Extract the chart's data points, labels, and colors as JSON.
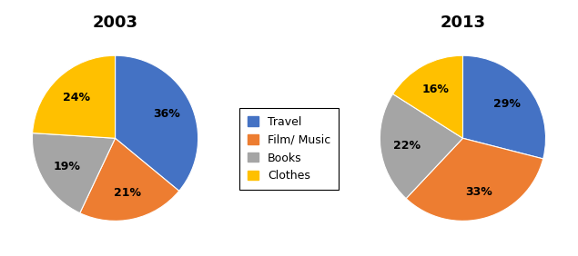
{
  "title_2003": "2003",
  "title_2013": "2013",
  "labels": [
    "Travel",
    "Film/ Music",
    "Books",
    "Clothes"
  ],
  "values_2003": [
    36,
    21,
    19,
    24
  ],
  "values_2013": [
    29,
    33,
    22,
    16
  ],
  "colors": [
    "#4472C4",
    "#ED7D31",
    "#A5A5A5",
    "#FFC000"
  ],
  "startangle_2003": 90,
  "startangle_2013": 90,
  "title_fontsize": 13,
  "label_fontsize": 9,
  "legend_fontsize": 9,
  "background_color": "#ffffff"
}
